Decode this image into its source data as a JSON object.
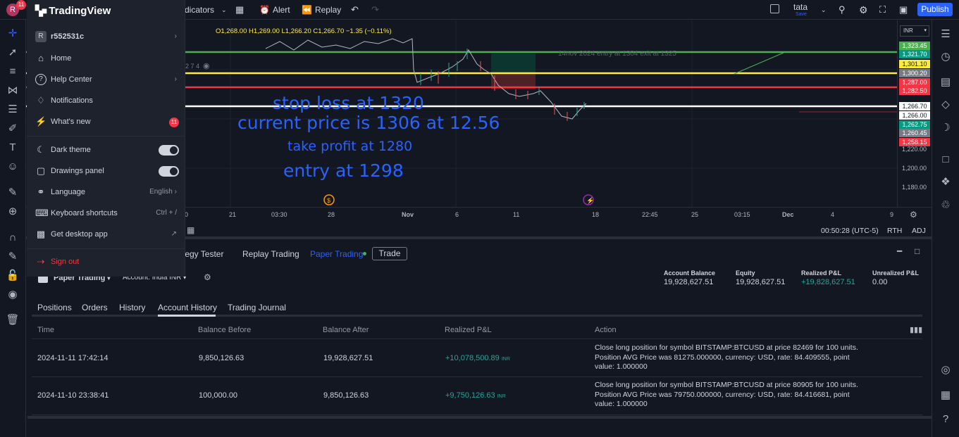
{
  "topbar": {
    "indicators_label": "dicators",
    "alert_label": "Alert",
    "replay_label": "Replay",
    "layout_name": "tata",
    "layout_save": "Save",
    "publish_label": "Publish",
    "avatar_letter": "R",
    "avatar_badge": "11"
  },
  "menu": {
    "logo_text": "TradingView",
    "user": {
      "initial": "R",
      "name": "r552531c"
    },
    "items": [
      {
        "label": "Home",
        "icon": "home-icon"
      },
      {
        "label": "Help Center",
        "icon": "help-icon"
      },
      {
        "label": "Notifications",
        "icon": "bell-icon"
      },
      {
        "label": "What's new",
        "icon": "lightning-icon",
        "badge": "11"
      }
    ],
    "settings": [
      {
        "label": "Dark theme",
        "icon": "moon-icon",
        "toggle": true
      },
      {
        "label": "Drawings panel",
        "icon": "panel-icon",
        "toggle": true
      },
      {
        "label": "Language",
        "icon": "globe-icon",
        "right": "English"
      },
      {
        "label": "Keyboard shortcuts",
        "icon": "keyboard-icon",
        "right": "Ctrl + /"
      },
      {
        "label": "Get desktop app",
        "icon": "desktop-icon"
      }
    ],
    "sign_out": "Sign out"
  },
  "chart": {
    "ohlc": "O1,268.00 H1,269.00 L1,266.20 C1,266.70 −1.35 (−0.11%)",
    "left_label": "2 7 4",
    "trade_note": "14nov 2024  entry at 1304 exit at 1325",
    "annotations": {
      "stop_loss": "stop loss at 1320",
      "current_price": "current price is 1306 at 12.56",
      "take_profit": "take profit at 1280",
      "entry": "entry at 1298"
    },
    "currency": "INR",
    "price_labels": [
      {
        "text": "1,323.45",
        "color": "#4caf50"
      },
      {
        "text": "1,321.70",
        "color": "#089981"
      },
      {
        "text": "1,301.10",
        "color": "#ffeb3b"
      },
      {
        "text": "1,300.20",
        "color": "#787b86"
      },
      {
        "text": "1,287.00",
        "color": "#f23645"
      },
      {
        "text": "1,282.50",
        "color": "#f23645"
      },
      {
        "text": "1,266.70",
        "color": "#ffffff"
      },
      {
        "text": "1,266.00",
        "color": "#ffffff"
      },
      {
        "text": "1,262.75",
        "color": "#089981"
      },
      {
        "text": "1,260.45",
        "color": "#787b86"
      },
      {
        "text": "1,258.15",
        "color": "#f23645"
      }
    ],
    "price_ticks": [
      "1,220.00",
      "1,200.00",
      "1,180.00"
    ],
    "time_labels": [
      "0",
      "21",
      "03:30",
      "28",
      "Nov",
      "6",
      "11",
      "18",
      "22:45",
      "25",
      "03:15",
      "Dec",
      "4",
      "9"
    ],
    "status_time": "00:50:28 (UTC-5)",
    "status_rth": "RTH",
    "status_adj": "ADJ"
  },
  "panel": {
    "tabs": [
      "tegy Tester",
      "Replay Trading",
      "Paper Trading",
      "Trade"
    ],
    "broker": "Paper Trading",
    "account": "Account: India INR",
    "summary": [
      {
        "label": "Account Balance",
        "value": "19,928,627.51"
      },
      {
        "label": "Equity",
        "value": "19,928,627.51"
      },
      {
        "label": "Realized P&L",
        "value": "+19,828,627.51"
      },
      {
        "label": "Unrealized P&L",
        "value": "0.00"
      }
    ],
    "subtabs": [
      "Positions",
      "Orders",
      "History",
      "Account History",
      "Trading Journal"
    ],
    "columns": [
      "Time",
      "Balance Before",
      "Balance After",
      "Realized P&L",
      "Action"
    ],
    "rows": [
      {
        "time": "2024-11-11 17:42:14",
        "before": "9,850,126.63",
        "after": "19,928,627.51",
        "pnl": "+10,078,500.89",
        "unit": "INR",
        "action": "Close long position for symbol BITSTAMP:BTCUSD at price 82469 for 100 units. Position AVG Price was 81275.000000, currency: USD, rate: 84.409555, point value: 1.000000"
      },
      {
        "time": "2024-11-10 23:38:41",
        "before": "100,000.00",
        "after": "9,850,126.63",
        "pnl": "+9,750,126.63",
        "unit": "INR",
        "action": "Close long position for symbol BITSTAMP:BTCUSD at price 80905 for 100 units. Position AVG Price was 79750.000000, currency: USD, rate: 84.416681, point value: 1.000000"
      }
    ]
  }
}
